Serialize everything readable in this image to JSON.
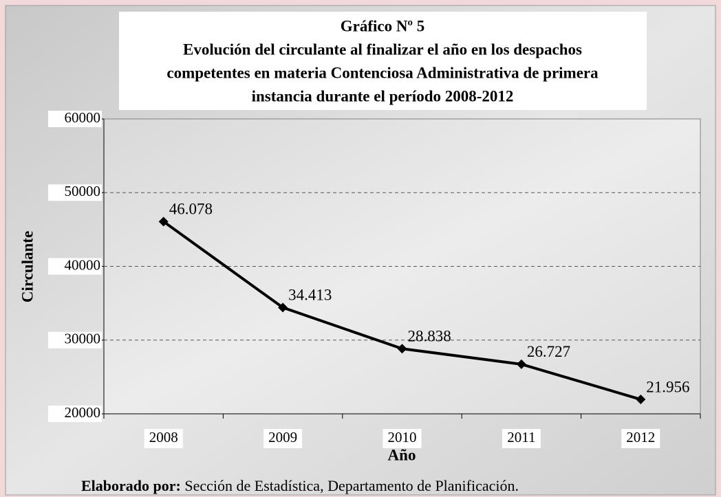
{
  "chart_data": {
    "type": "line",
    "title": [
      "Gráfico Nº 5",
      "Evolución del circulante al finalizar el año en los despachos",
      "competentes en materia Contenciosa Administrativa de primera",
      "instancia durante el período 2008-2012"
    ],
    "x_label": "Año",
    "y_label": "Circulante",
    "categories": [
      "2008",
      "2009",
      "2010",
      "2011",
      "2012"
    ],
    "values": [
      46078,
      34413,
      28838,
      26727,
      21956
    ],
    "value_labels": [
      "46.078",
      "34.413",
      "28.838",
      "26.727",
      "21.956"
    ],
    "color": "#000000",
    "ylim": [
      20000,
      60000
    ],
    "yticks": [
      20000,
      30000,
      40000,
      50000,
      60000
    ],
    "grid": true,
    "source_label": "Elaborado por:",
    "source": "Sección de Estadística, Departamento de Planificación."
  }
}
